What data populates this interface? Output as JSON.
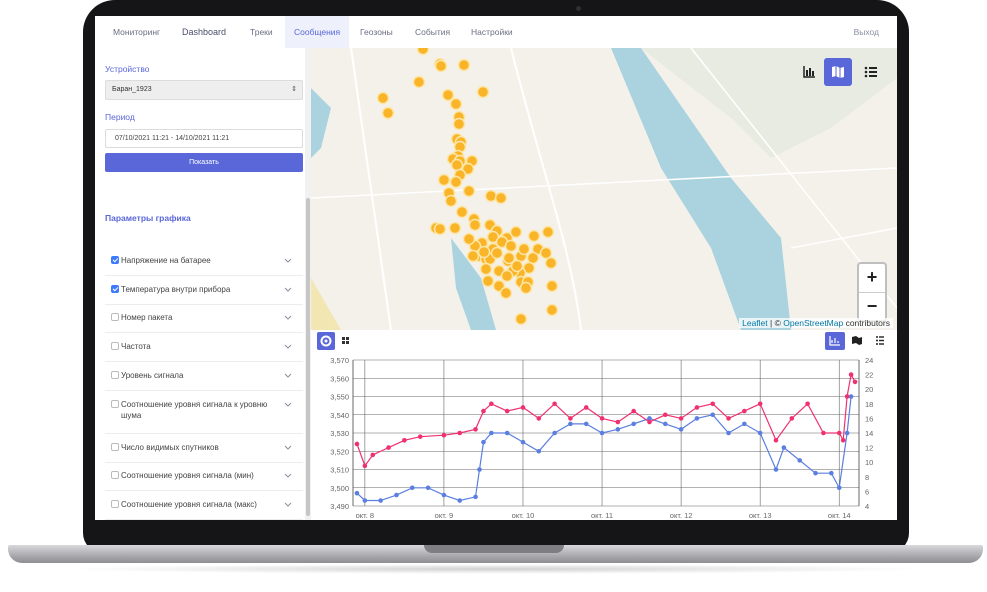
{
  "nav": {
    "items": [
      "Мониторинг",
      "Dashboard",
      "Треки",
      "Сообщения",
      "Геозоны",
      "События",
      "Настройки"
    ],
    "active": "Сообщения",
    "logout": "Выход"
  },
  "sidebar": {
    "device_label": "Устройство",
    "device_value": "Баран_1923",
    "period_label": "Период",
    "period_value": "07/10/2021 11:21 - 14/10/2021 11:21",
    "show_button": "Показать",
    "params_title": "Параметры графика",
    "params": [
      {
        "label": "Напряжение на батарее",
        "checked": true
      },
      {
        "label": "Температура внутри прибора",
        "checked": true
      },
      {
        "label": "Номер пакета",
        "checked": false
      },
      {
        "label": "Частота",
        "checked": false
      },
      {
        "label": "Уровень сигнала",
        "checked": false
      },
      {
        "label": "Соотношение уровня сигнала к уровню шума",
        "checked": false
      },
      {
        "label": "Число видимых спутников",
        "checked": false
      },
      {
        "label": "Соотношение уровня сигнала (мин)",
        "checked": false
      },
      {
        "label": "Соотношение уровня сигнала (макс)",
        "checked": false
      }
    ]
  },
  "map": {
    "attribution_leaflet": "Leaflet",
    "attribution_sep": " | © ",
    "attribution_osm": "OpenStreetMap",
    "attribution_tail": " contributors",
    "zoom_in": "+",
    "zoom_out": "−",
    "marker_color": "#f9b428",
    "view_buttons": [
      "chart-icon",
      "map-icon",
      "list-icon"
    ],
    "active_view": "map-icon"
  },
  "colors": {
    "accent": "#5a67d8",
    "voltage": "#5b7fe0",
    "temperature": "#f0316f"
  },
  "chart_data": {
    "type": "line",
    "x_categories": [
      "окт. 8",
      "окт. 9",
      "окт. 10",
      "окт. 11",
      "окт. 12",
      "окт. 13",
      "окт. 14"
    ],
    "y_left_ticks": [
      "3,490",
      "3,500",
      "3,510",
      "3,520",
      "3,530",
      "3,540",
      "3,550",
      "3,560",
      "3,570"
    ],
    "y_right_ticks": [
      "4",
      "6",
      "8",
      "10",
      "12",
      "14",
      "16",
      "18",
      "20",
      "22",
      "24"
    ],
    "ylim_left": [
      3490,
      3570
    ],
    "ylim_right": [
      4,
      24
    ],
    "grid": true,
    "series": [
      {
        "axis": "left",
        "color": "#5b7fe0",
        "x": [
          7.9,
          8.0,
          8.2,
          8.4,
          8.6,
          8.8,
          9.0,
          9.2,
          9.4,
          9.45,
          9.5,
          9.6,
          9.8,
          10.0,
          10.2,
          10.4,
          10.6,
          10.8,
          11.0,
          11.2,
          11.4,
          11.6,
          11.8,
          12.0,
          12.2,
          12.4,
          12.6,
          12.8,
          13.0,
          13.2,
          13.3,
          13.5,
          13.7,
          13.9,
          14.0,
          14.1,
          14.15
        ],
        "y": [
          3497,
          3493,
          3493,
          3496,
          3500,
          3500,
          3496,
          3493,
          3495,
          3510,
          3525,
          3530,
          3530,
          3525,
          3520,
          3530,
          3535,
          3535,
          3530,
          3532,
          3535,
          3538,
          3535,
          3532,
          3538,
          3540,
          3530,
          3535,
          3530,
          3510,
          3522,
          3515,
          3508,
          3508,
          3500,
          3530,
          3550
        ]
      },
      {
        "axis": "right",
        "color": "#f0316f",
        "x": [
          7.9,
          8.0,
          8.1,
          8.3,
          8.5,
          8.7,
          9.0,
          9.2,
          9.4,
          9.5,
          9.6,
          9.8,
          10.0,
          10.2,
          10.4,
          10.6,
          10.8,
          11.0,
          11.2,
          11.4,
          11.6,
          11.8,
          12.0,
          12.2,
          12.4,
          12.6,
          12.8,
          13.0,
          13.2,
          13.4,
          13.6,
          13.8,
          14.0,
          14.05,
          14.1,
          14.15,
          14.2
        ],
        "y": [
          12.5,
          9.5,
          11,
          12,
          13,
          13.5,
          13.7,
          14,
          14.5,
          17,
          18,
          17,
          17.5,
          16,
          18,
          16,
          17.5,
          16,
          15.5,
          17,
          15.5,
          16.5,
          16,
          17.5,
          18,
          16,
          17,
          18,
          13,
          16,
          18,
          14,
          14,
          13,
          19,
          22,
          21
        ]
      }
    ]
  }
}
